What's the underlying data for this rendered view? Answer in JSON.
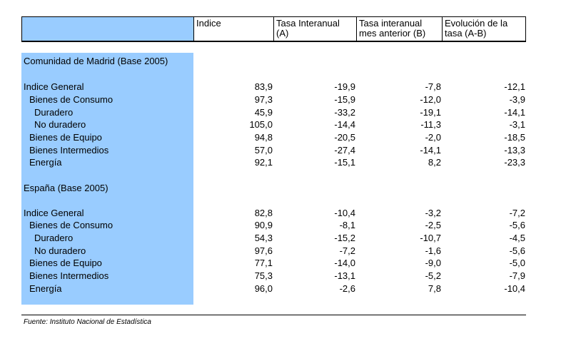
{
  "header": {
    "indice": "Indice",
    "tasa_a": "Tasa Interanual\n(A)",
    "tasa_b": "Tasa interanual\nmes anterior (B)",
    "evolucion": "Evolución de la\ntasa (A-B)"
  },
  "madrid": {
    "title": "Comunidad de Madrid (Base 2005)",
    "rows": [
      {
        "label": "Indice General",
        "indice": "83,9",
        "a": "-19,9",
        "b": "-7,8",
        "ab": "-12,1"
      },
      {
        "label": "Bienes de Consumo",
        "indice": "97,3",
        "a": "-15,9",
        "b": "-12,0",
        "ab": "-3,9"
      },
      {
        "label": "Duradero",
        "indice": "45,9",
        "a": "-33,2",
        "b": "-19,1",
        "ab": "-14,1"
      },
      {
        "label": "No duradero",
        "indice": "105,0",
        "a": "-14,4",
        "b": "-11,3",
        "ab": "-3,1"
      },
      {
        "label": "Bienes de Equipo",
        "indice": "94,8",
        "a": "-20,5",
        "b": "-2,0",
        "ab": "-18,5"
      },
      {
        "label": "Bienes Intermedios",
        "indice": "57,0",
        "a": "-27,4",
        "b": "-14,1",
        "ab": "-13,3"
      },
      {
        "label": "Energía",
        "indice": "92,1",
        "a": "-15,1",
        "b": "8,2",
        "ab": "-23,3"
      }
    ]
  },
  "espana": {
    "title": "España (Base 2005)",
    "rows": [
      {
        "label": "Indice General",
        "indice": "82,8",
        "a": "-10,4",
        "b": "-3,2",
        "ab": "-7,2"
      },
      {
        "label": "Bienes de Consumo",
        "indice": "90,9",
        "a": "-8,1",
        "b": "-2,5",
        "ab": "-5,6"
      },
      {
        "label": "Duradero",
        "indice": "54,3",
        "a": "-15,2",
        "b": "-10,7",
        "ab": "-4,5"
      },
      {
        "label": "No duradero",
        "indice": "97,6",
        "a": "-7,2",
        "b": "-1,6",
        "ab": "-5,6"
      },
      {
        "label": "Bienes de Equipo",
        "indice": "77,1",
        "a": "-14,0",
        "b": "-9,0",
        "ab": "-5,0"
      },
      {
        "label": "Bienes Intermedios",
        "indice": "75,3",
        "a": "-13,1",
        "b": "-5,2",
        "ab": "-7,9"
      },
      {
        "label": "Energía",
        "indice": "96,0",
        "a": "-2,6",
        "b": "7,8",
        "ab": "-10,4"
      }
    ]
  },
  "source": "Fuente: Instituto Nacional de Estadística",
  "colors": {
    "label_fill": "#99ccff"
  }
}
